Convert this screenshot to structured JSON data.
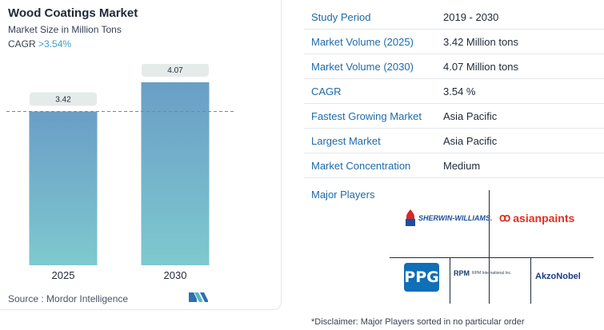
{
  "header": {
    "title": "Wood Coatings Market",
    "subtitle": "Market Size in Million Tons",
    "cagr_label": "CAGR",
    "cagr_value": ">3.54%"
  },
  "chart_data": {
    "type": "bar",
    "title": "Wood Coatings Market",
    "subtitle": "Market Size in Million Tons",
    "categories": [
      "2025",
      "2030"
    ],
    "values": [
      3.42,
      4.07
    ],
    "data_labels": [
      "3.42",
      "4.07"
    ],
    "ylim": [
      0,
      4.3
    ],
    "reference_line": 3.42,
    "colors": {
      "bar_top": "#6a9ec6",
      "bar_bottom": "#7ec9cf",
      "label_bg": "#e5ebe9",
      "ref_line": "#5b8db8"
    }
  },
  "footer": {
    "source": "Source :  Mordor Intelligence",
    "logo_icon": "mordor-intelligence-logo"
  },
  "table": {
    "rows": [
      {
        "key": "Study Period",
        "value": "2019 - 2030"
      },
      {
        "key": "Market Volume (2025)",
        "value": "3.42 Million tons"
      },
      {
        "key": "Market Volume (2030)",
        "value": "4.07 Million tons"
      },
      {
        "key": "CAGR",
        "value": "3.54 %"
      },
      {
        "key": "Fastest Growing Market",
        "value": "Asia Pacific"
      },
      {
        "key": "Largest Market",
        "value": "Asia Pacific"
      },
      {
        "key": "Market Concentration",
        "value": "Medium"
      }
    ]
  },
  "players": {
    "label": "Major Players",
    "sherwin": "SHERWIN-WILLIAMS.",
    "asian": "asianpaints",
    "ppg": "PPG",
    "rpm": "RPM",
    "rpm_sub": "RPM International Inc.",
    "akzo": "AkzoNobel"
  },
  "disclaimer": "*Disclaimer: Major Players sorted in no particular order"
}
